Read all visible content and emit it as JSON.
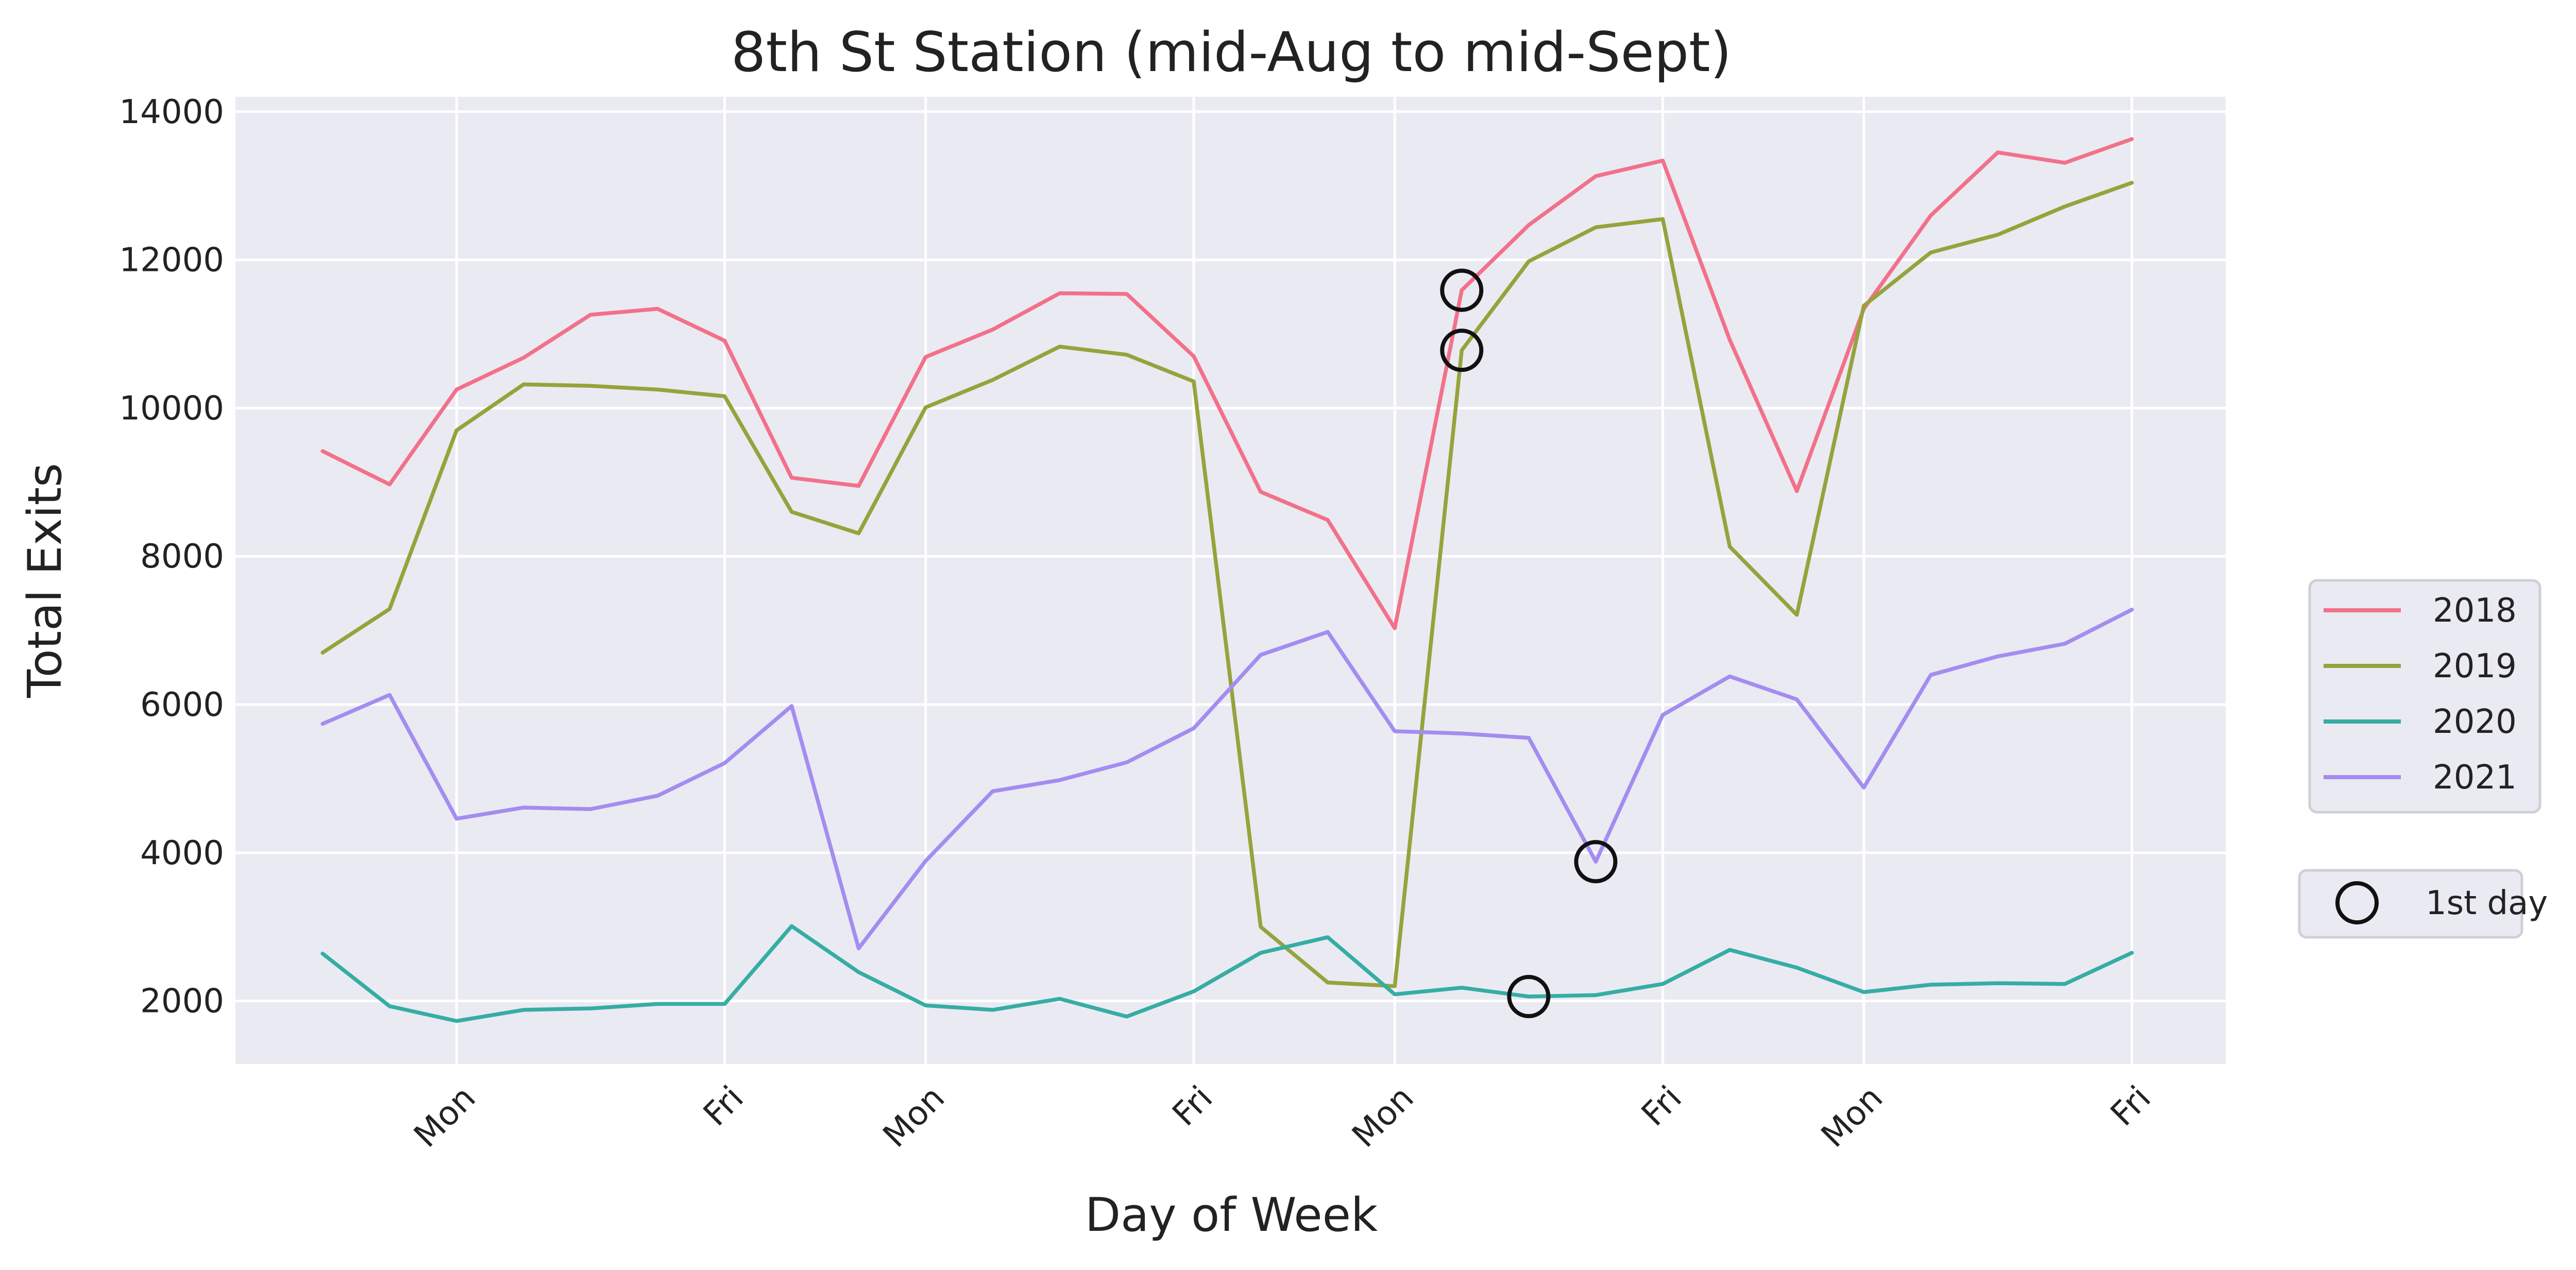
{
  "chart_data": {
    "type": "line",
    "title": "8th St Station (mid-Aug to mid-Sept)",
    "xlabel": "Day of Week",
    "ylabel": "Total Exits",
    "x_index": [
      0,
      1,
      2,
      3,
      4,
      5,
      6,
      7,
      8,
      9,
      10,
      11,
      12,
      13,
      14,
      15,
      16,
      17,
      18,
      19,
      20,
      21,
      22,
      23,
      24,
      25,
      26,
      27
    ],
    "xlim": [
      -1.3,
      28.4
    ],
    "ylim": [
      1150,
      14200
    ],
    "x_ticks": [
      {
        "x": 2,
        "label": "Mon"
      },
      {
        "x": 6,
        "label": "Fri"
      },
      {
        "x": 9,
        "label": "Mon"
      },
      {
        "x": 13,
        "label": "Fri"
      },
      {
        "x": 16,
        "label": "Mon"
      },
      {
        "x": 20,
        "label": "Fri"
      },
      {
        "x": 23,
        "label": "Mon"
      },
      {
        "x": 27,
        "label": "Fri"
      }
    ],
    "y_ticks": [
      2000,
      4000,
      6000,
      8000,
      10000,
      12000,
      14000
    ],
    "grid": true,
    "series": [
      {
        "name": "2018",
        "color": "#f2718a",
        "values": [
          9420,
          8970,
          10250,
          10680,
          11260,
          11340,
          10910,
          9060,
          8950,
          10690,
          11060,
          11550,
          11540,
          10700,
          8870,
          8490,
          7030,
          11590,
          12470,
          13130,
          13340,
          10920,
          8880,
          11340,
          12600,
          13450,
          13310,
          13630
        ]
      },
      {
        "name": "2019",
        "color": "#96a33c",
        "values": [
          6700,
          7290,
          9700,
          10320,
          10300,
          10250,
          10160,
          8600,
          8310,
          10010,
          10380,
          10830,
          10720,
          10360,
          3000,
          2250,
          2200,
          10780,
          11980,
          12440,
          12550,
          8130,
          7210,
          11380,
          12100,
          12340,
          12720,
          13040
        ]
      },
      {
        "name": "2020",
        "color": "#36ada4",
        "values": [
          2640,
          1930,
          1730,
          1880,
          1900,
          1960,
          1960,
          3010,
          2390,
          1940,
          1880,
          2030,
          1790,
          2130,
          2650,
          2860,
          2090,
          2180,
          2060,
          2080,
          2230,
          2690,
          2450,
          2120,
          2220,
          2240,
          2230,
          2650
        ]
      },
      {
        "name": "2021",
        "color": "#a48cf0",
        "values": [
          5740,
          6130,
          4460,
          4610,
          4590,
          4770,
          5210,
          5980,
          2710,
          3890,
          4830,
          4980,
          5220,
          5680,
          6670,
          6980,
          5640,
          5610,
          5550,
          3880,
          5860,
          6380,
          6070,
          4880,
          6400,
          6650,
          6820,
          7280
        ]
      }
    ],
    "markers": [
      {
        "x": 17,
        "y": 11590
      },
      {
        "x": 17,
        "y": 10780
      },
      {
        "x": 18,
        "y": 2060
      },
      {
        "x": 19,
        "y": 3880
      }
    ],
    "legend": {
      "placement": "center-right, outside",
      "entries": [
        "2018",
        "2019",
        "2020",
        "2021"
      ],
      "marker_label": "1st day"
    },
    "background_color": "#eaeaf2",
    "grid_color": "#ffffff",
    "marker_color": "#111111"
  }
}
